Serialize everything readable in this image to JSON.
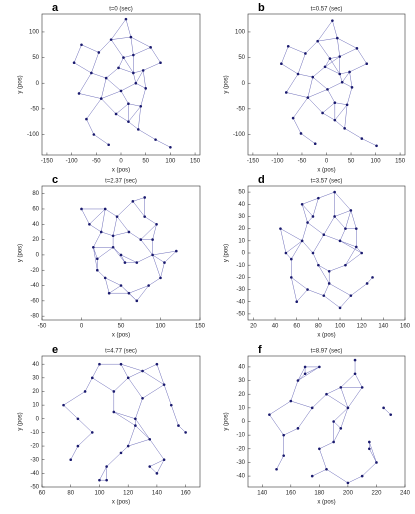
{
  "chart_data": [
    {
      "type": "scatter",
      "label": "a",
      "title": "t=0 (sec)",
      "xlabel": "x (pos)",
      "ylabel": "y (pos)",
      "color": "#1a1a6e",
      "xlim": [
        -160,
        160
      ],
      "xticks": [
        -150,
        -100,
        -50,
        0,
        50,
        100,
        150
      ],
      "ylim": [
        -140,
        135
      ],
      "yticks": [
        -100,
        -50,
        0,
        50,
        100
      ],
      "x": [
        -95,
        -80,
        -70,
        -60,
        -55,
        -45,
        -40,
        -30,
        -25,
        -20,
        -10,
        -5,
        0,
        5,
        10,
        15,
        20,
        25,
        30,
        35,
        40,
        45,
        50,
        60,
        70,
        80,
        100,
        -85,
        15,
        25
      ],
      "y": [
        40,
        75,
        -70,
        20,
        -100,
        60,
        -30,
        10,
        -120,
        85,
        -60,
        30,
        -15,
        50,
        125,
        -40,
        90,
        55,
        0,
        -90,
        -45,
        25,
        -10,
        70,
        -110,
        40,
        -125,
        -20,
        -75,
        20
      ]
    },
    {
      "type": "scatter",
      "label": "b",
      "title": "t=0.57 (sec)",
      "xlabel": "x (pos)",
      "ylabel": "y (pos)",
      "color": "#1a1a6e",
      "xlim": [
        -160,
        160
      ],
      "xticks": [
        -150,
        -100,
        -50,
        0,
        50,
        100,
        150
      ],
      "ylim": [
        -140,
        135
      ],
      "yticks": [
        -100,
        -50,
        0,
        50,
        100
      ],
      "x": [
        -92,
        -78,
        -68,
        -58,
        -52,
        -43,
        -38,
        -28,
        -23,
        -18,
        -8,
        -3,
        2,
        7,
        12,
        17,
        22,
        27,
        32,
        37,
        42,
        47,
        52,
        62,
        72,
        82,
        102,
        -82,
        17,
        27
      ],
      "y": [
        38,
        72,
        -68,
        18,
        -98,
        58,
        -28,
        12,
        -118,
        82,
        -58,
        32,
        -12,
        48,
        122,
        -38,
        88,
        52,
        2,
        -88,
        -42,
        22,
        -8,
        68,
        -108,
        38,
        -122,
        -18,
        -72,
        18
      ]
    },
    {
      "type": "scatter",
      "label": "c",
      "title": "t=2.37 (sec)",
      "xlabel": "x (pos)",
      "ylabel": "y (pos)",
      "color": "#1a1a6e",
      "xlim": [
        -50,
        150
      ],
      "xticks": [
        -50,
        0,
        50,
        100,
        150
      ],
      "ylim": [
        -85,
        90
      ],
      "yticks": [
        -80,
        -60,
        -40,
        -20,
        0,
        20,
        40,
        60,
        80
      ],
      "x": [
        10,
        20,
        30,
        40,
        50,
        60,
        70,
        80,
        90,
        100,
        15,
        25,
        35,
        45,
        55,
        65,
        75,
        85,
        95,
        105,
        30,
        50,
        70,
        90,
        40,
        60,
        80,
        20,
        120,
        0
      ],
      "y": [
        40,
        -20,
        60,
        10,
        -40,
        30,
        -60,
        50,
        0,
        -30,
        10,
        30,
        -50,
        50,
        -10,
        70,
        20,
        -40,
        40,
        -10,
        -30,
        0,
        -10,
        20,
        25,
        -50,
        75,
        -5,
        5,
        60
      ]
    },
    {
      "type": "scatter",
      "label": "d",
      "title": "t=3.57 (sec)",
      "xlabel": "x (pos)",
      "ylabel": "y (pos)",
      "color": "#1a1a6e",
      "xlim": [
        15,
        160
      ],
      "xticks": [
        20,
        40,
        60,
        80,
        100,
        120,
        140,
        160
      ],
      "ylim": [
        -55,
        55
      ],
      "yticks": [
        -50,
        -40,
        -30,
        -20,
        -10,
        0,
        10,
        20,
        30,
        40,
        50
      ],
      "x": [
        45,
        55,
        65,
        75,
        85,
        95,
        105,
        115,
        125,
        50,
        60,
        70,
        80,
        90,
        100,
        110,
        120,
        130,
        55,
        70,
        85,
        100,
        115,
        65,
        80,
        95,
        110,
        75,
        90,
        105
      ],
      "y": [
        20,
        -20,
        40,
        0,
        -35,
        30,
        -10,
        20,
        -25,
        0,
        -40,
        25,
        45,
        -15,
        10,
        35,
        0,
        -20,
        -5,
        -30,
        15,
        -45,
        5,
        10,
        -10,
        50,
        -35,
        30,
        -25,
        20
      ]
    },
    {
      "type": "scatter",
      "label": "e",
      "title": "t=4.77 (sec)",
      "xlabel": "x (pos)",
      "ylabel": "y (pos)",
      "color": "#1a1a6e",
      "xlim": [
        60,
        170
      ],
      "xticks": [
        60,
        80,
        100,
        120,
        140,
        160
      ],
      "ylim": [
        -50,
        46
      ],
      "yticks": [
        -50,
        -40,
        -30,
        -20,
        -10,
        0,
        10,
        20,
        30,
        40
      ],
      "x": [
        75,
        85,
        95,
        105,
        115,
        125,
        135,
        145,
        155,
        80,
        90,
        100,
        110,
        120,
        130,
        140,
        150,
        160,
        85,
        100,
        115,
        130,
        145,
        95,
        110,
        125,
        140,
        105,
        120,
        135
      ],
      "y": [
        10,
        -20,
        30,
        -35,
        40,
        0,
        -15,
        25,
        -5,
        -30,
        20,
        -45,
        5,
        -20,
        35,
        -40,
        10,
        -10,
        0,
        40,
        -25,
        15,
        -30,
        -10,
        20,
        -5,
        40,
        -45,
        30,
        -35
      ]
    },
    {
      "type": "scatter",
      "label": "f",
      "title": "t=8.97 (sec)",
      "xlabel": "x (pos)",
      "ylabel": "y (pos)",
      "color": "#1a1a6e",
      "xlim": [
        130,
        240
      ],
      "xticks": [
        140,
        160,
        180,
        200,
        220,
        240
      ],
      "ylim": [
        -48,
        48
      ],
      "yticks": [
        -40,
        -30,
        -20,
        -10,
        0,
        10,
        20,
        30,
        40
      ],
      "x": [
        145,
        155,
        165,
        175,
        185,
        195,
        205,
        215,
        225,
        150,
        160,
        170,
        180,
        190,
        200,
        210,
        220,
        230,
        155,
        170,
        185,
        200,
        215,
        165,
        180,
        195,
        210,
        175,
        190,
        205
      ],
      "y": [
        5,
        -25,
        30,
        -40,
        20,
        -5,
        35,
        -15,
        10,
        -35,
        15,
        40,
        -20,
        0,
        -45,
        25,
        -30,
        5,
        -10,
        35,
        -35,
        10,
        -20,
        -5,
        40,
        25,
        -40,
        10,
        -15,
        45
      ]
    }
  ]
}
